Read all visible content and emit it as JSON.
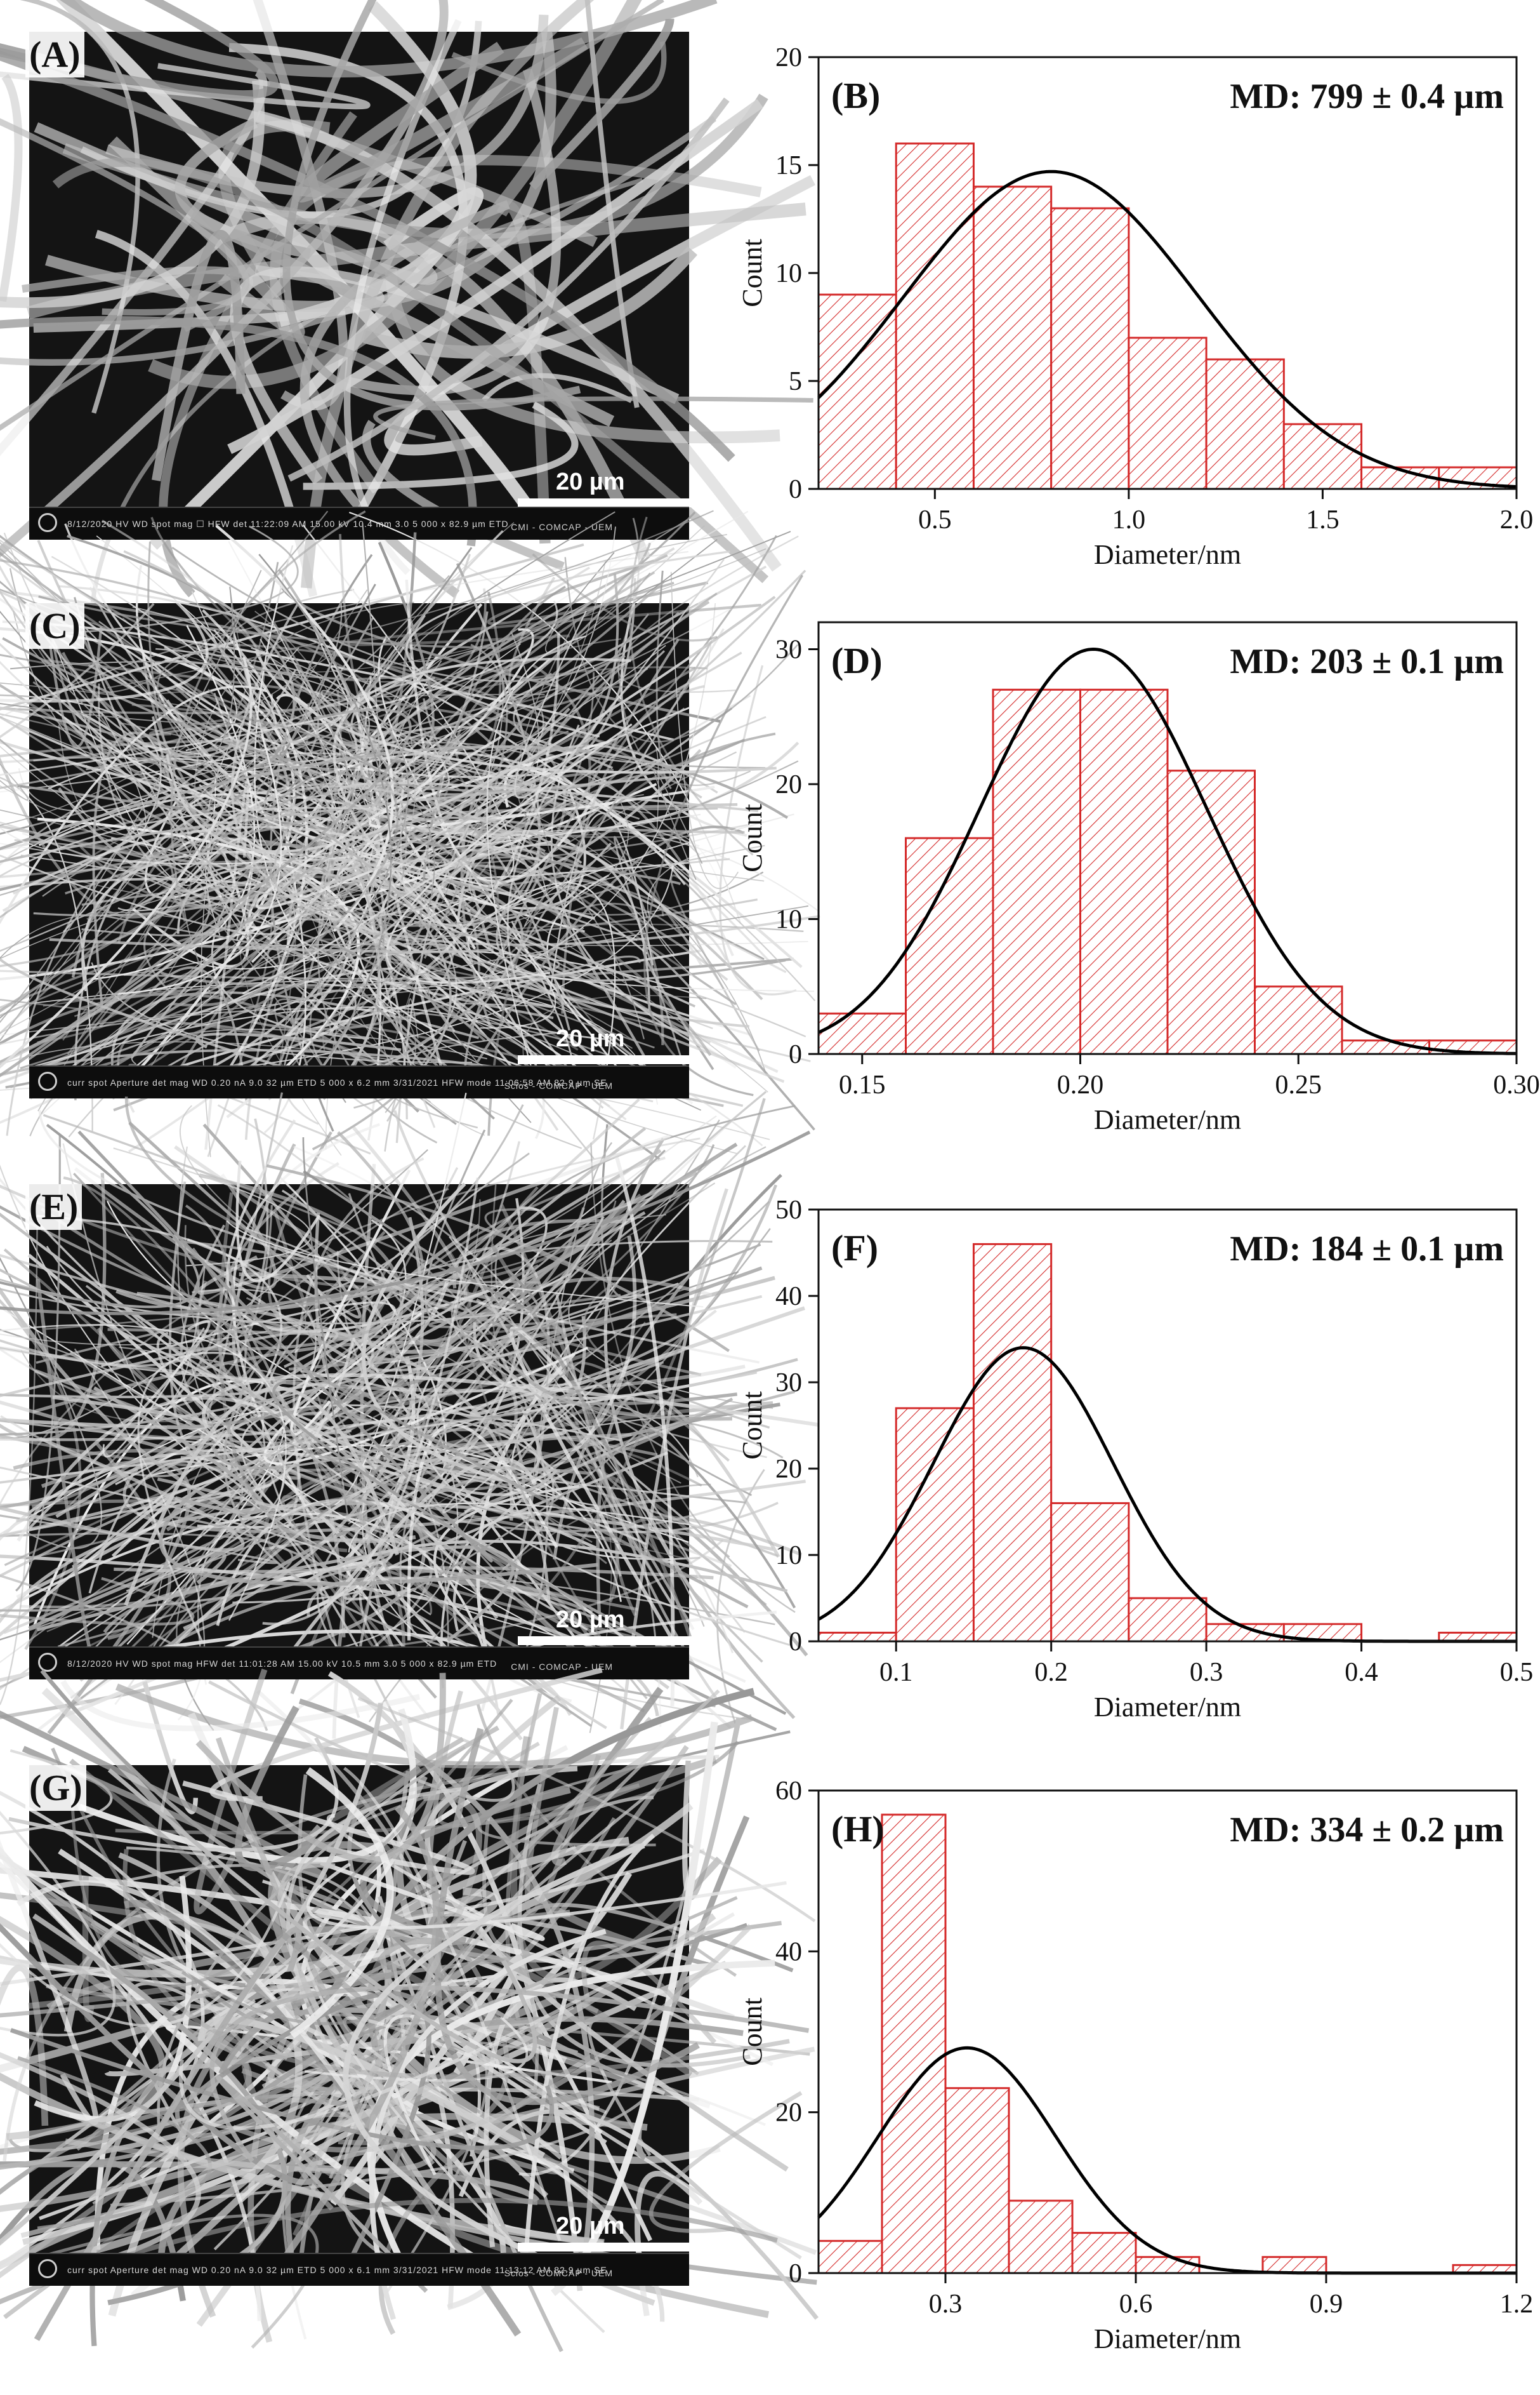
{
  "panels": [
    {
      "sem_label": "(A)",
      "scale_label": "20 µm",
      "sem_info": "8/12/2020   HV   WD   spot   mag ☐   HFW   det    11:22:09 AM   15.00 kV   10.4 mm   3.0   5 000 x   82.9 µm   ETD",
      "sem_footer": "CMI - COMCAP - UEM"
    },
    {
      "sem_label": "(C)",
      "scale_label": "20 µm",
      "sem_info": "curr   spot   Aperture   det   mag   WD    0.20 nA   9.0   32 µm   ETD   5 000 x   6.2 mm    3/31/2021   HFW   mode   11:06:58 AM   82.9 µm   SE",
      "sem_footer": "Scios - COMCAP - UEM"
    },
    {
      "sem_label": "(E)",
      "scale_label": "20 µm",
      "sem_info": "8/12/2020   HV   WD   spot   mag   HFW   det    11:01:28 AM   15.00 kV   10.5 mm   3.0   5 000 x   82.9 µm   ETD",
      "sem_footer": "CMI - COMCAP - UEM"
    },
    {
      "sem_label": "(G)",
      "scale_label": "20 µm",
      "sem_info": "curr   spot   Aperture   det   mag   WD    0.20 nA   9.0   32 µm   ETD   5 000 x   6.1 mm    3/31/2021   HFW   mode   11:13:12 AM   82.9 µm   SE",
      "sem_footer": "Scios - COMCAP - UEM"
    }
  ],
  "colors": {
    "bar_stroke": "#d42a2a",
    "bar_hatch": "#d42a2a",
    "fit_curve": "#000000"
  },
  "chart_data": [
    {
      "type": "bar",
      "panel_label": "(B)",
      "annotation": "MD:  799 ± 0.4 µm",
      "xlabel": "Diameter/nm",
      "ylabel": "Count",
      "xlim": [
        0.2,
        2.0
      ],
      "ylim": [
        0,
        20
      ],
      "xticks": [
        0.5,
        1.0,
        1.5,
        2.0
      ],
      "xtick_labels": [
        "0.5",
        "1.0",
        "1.5",
        "2.0"
      ],
      "yticks": [
        0,
        5,
        10,
        15,
        20
      ],
      "bin_edges": [
        0.2,
        0.4,
        0.6,
        0.8,
        1.0,
        1.2,
        1.4,
        1.6,
        1.8,
        2.0
      ],
      "counts": [
        9,
        16,
        14,
        13,
        7,
        6,
        3,
        1,
        1
      ],
      "fit": {
        "type": "gaussian",
        "mean": 0.8,
        "sigma": 0.38,
        "peak": 14.7
      }
    },
    {
      "type": "bar",
      "panel_label": "(D)",
      "annotation": "MD:  203 ± 0.1 µm",
      "xlabel": "Diameter/nm",
      "ylabel": "Count",
      "xlim": [
        0.14,
        0.3
      ],
      "ylim": [
        0,
        32
      ],
      "xticks": [
        0.15,
        0.2,
        0.25,
        0.3
      ],
      "xtick_labels": [
        "0.15",
        "0.20",
        "0.25",
        "0.30"
      ],
      "yticks": [
        0,
        10,
        20,
        30
      ],
      "bin_edges": [
        0.14,
        0.16,
        0.18,
        0.2,
        0.22,
        0.24,
        0.26,
        0.28,
        0.3
      ],
      "counts": [
        3,
        16,
        27,
        27,
        21,
        5,
        1,
        1
      ],
      "fit": {
        "type": "gaussian",
        "mean": 0.203,
        "sigma": 0.026,
        "peak": 30
      }
    },
    {
      "type": "bar",
      "panel_label": "(F)",
      "annotation": "MD:  184 ± 0.1 µm",
      "xlabel": "Diameter/nm",
      "ylabel": "Count",
      "xlim": [
        0.05,
        0.5
      ],
      "ylim": [
        0,
        50
      ],
      "xticks": [
        0.1,
        0.2,
        0.3,
        0.4,
        0.5
      ],
      "xtick_labels": [
        "0.1",
        "0.2",
        "0.3",
        "0.4",
        "0.5"
      ],
      "yticks": [
        0,
        10,
        20,
        30,
        40,
        50
      ],
      "bin_edges": [
        0.05,
        0.1,
        0.15,
        0.2,
        0.25,
        0.3,
        0.35,
        0.4,
        0.45,
        0.5
      ],
      "counts": [
        1,
        27,
        46,
        16,
        5,
        2,
        2,
        0,
        1
      ],
      "fit": {
        "type": "gaussian",
        "mean": 0.182,
        "sigma": 0.058,
        "peak": 34
      }
    },
    {
      "type": "bar",
      "panel_label": "(H)",
      "annotation": "MD:  334 ± 0.2 µm",
      "xlabel": "Diameter/nm",
      "ylabel": "Count",
      "xlim": [
        0.1,
        1.2
      ],
      "ylim": [
        0,
        60
      ],
      "xticks": [
        0.3,
        0.6,
        0.9,
        1.2
      ],
      "xtick_labels": [
        "0.3",
        "0.6",
        "0.9",
        "1.2"
      ],
      "yticks": [
        0,
        20,
        40,
        60
      ],
      "bin_edges": [
        0.1,
        0.2,
        0.3,
        0.4,
        0.5,
        0.6,
        0.7,
        0.8,
        0.9,
        1.0,
        1.1,
        1.2
      ],
      "counts": [
        4,
        57,
        23,
        9,
        5,
        2,
        0,
        2,
        0,
        0,
        1
      ],
      "fit": {
        "type": "gaussian",
        "mean": 0.334,
        "sigma": 0.14,
        "peak": 28
      }
    }
  ]
}
